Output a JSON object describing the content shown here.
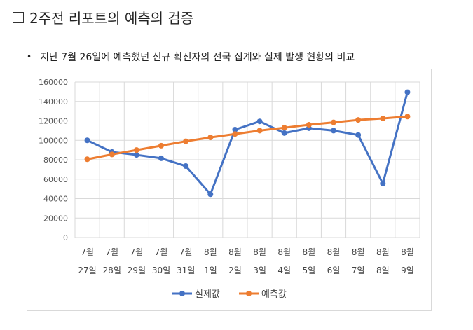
{
  "heading": {
    "text": "2주전 리포트의 예측의 검증",
    "icon": "square-outline-icon"
  },
  "bullet": {
    "symbol": "•",
    "text": "지난 7월 26일에 예측했던 신규 확진자의 전국 집계와 실제 발생 현황의 비교"
  },
  "chart_data": {
    "type": "line",
    "title": "",
    "xlabel": "",
    "ylabel": "",
    "ylim": [
      0,
      160000
    ],
    "yticks": [
      "0",
      "20000",
      "40000",
      "60000",
      "80000",
      "100000",
      "120000",
      "140000",
      "160000"
    ],
    "grid": true,
    "legend_position": "bottom",
    "categories": [
      [
        "7월",
        "27일"
      ],
      [
        "7월",
        "28일"
      ],
      [
        "7월",
        "29일"
      ],
      [
        "7월",
        "30일"
      ],
      [
        "7월",
        "31일"
      ],
      [
        "8월",
        "1일"
      ],
      [
        "8월",
        "2일"
      ],
      [
        "8월",
        "3일"
      ],
      [
        "8월",
        "4일"
      ],
      [
        "8월",
        "5일"
      ],
      [
        "8월",
        "6일"
      ],
      [
        "8월",
        "7일"
      ],
      [
        "8월",
        "8일"
      ],
      [
        "8월",
        "9일"
      ]
    ],
    "series": [
      {
        "name": "실제값",
        "color": "#4472c4",
        "values": [
          100000,
          88000,
          85000,
          81500,
          73500,
          44500,
          111000,
          119500,
          107500,
          112500,
          110000,
          105500,
          55500,
          149500
        ]
      },
      {
        "name": "예측값",
        "color": "#ed7d31",
        "values": [
          80500,
          85500,
          90000,
          94500,
          99000,
          103000,
          106500,
          110000,
          113000,
          116000,
          118500,
          121000,
          122500,
          124500
        ]
      }
    ]
  }
}
